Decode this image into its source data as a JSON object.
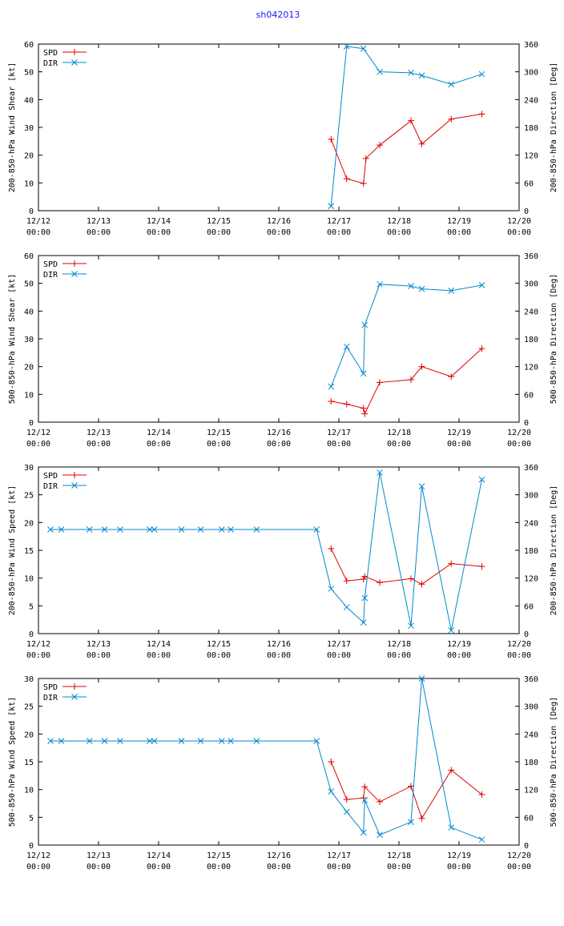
{
  "title": "sh042013",
  "colors": {
    "spd": "#e00000",
    "dir": "#0088cc",
    "axis": "#000000"
  },
  "x_ticks": [
    {
      "d": "12/12",
      "t": "00:00"
    },
    {
      "d": "12/13",
      "t": "00:00"
    },
    {
      "d": "12/14",
      "t": "00:00"
    },
    {
      "d": "12/15",
      "t": "00:00"
    },
    {
      "d": "12/16",
      "t": "00:00"
    },
    {
      "d": "12/17",
      "t": "00:00"
    },
    {
      "d": "12/18",
      "t": "00:00"
    },
    {
      "d": "12/19",
      "t": "00:00"
    },
    {
      "d": "12/20",
      "t": "00:00"
    }
  ],
  "chart_data": [
    {
      "type": "line",
      "ylabel": "200-850-hPa Wind Shear [kt]",
      "y2label": "200-850-hPa Direction [Deg]",
      "xlim": [
        0,
        8
      ],
      "ylim": [
        0,
        60
      ],
      "y2lim": [
        0,
        360
      ],
      "yticks": [
        0,
        10,
        20,
        30,
        40,
        50,
        60
      ],
      "y2ticks": [
        0,
        60,
        120,
        180,
        240,
        300,
        360
      ],
      "legend": "top-left",
      "series": [
        {
          "name": "SPD",
          "axis": "y",
          "x": [
            4.87,
            5.13,
            5.41,
            5.45,
            5.68,
            6.2,
            6.38,
            6.87,
            7.38
          ],
          "values": [
            25.7,
            11.5,
            9.8,
            18.8,
            23.6,
            32.4,
            24.0,
            33.0,
            34.8
          ]
        },
        {
          "name": "DIR",
          "axis": "y2",
          "x": [
            4.87,
            5.13,
            5.41,
            5.68,
            6.2,
            6.38,
            6.87,
            7.38
          ],
          "values": [
            10,
            355,
            350,
            300,
            298,
            292,
            273,
            295
          ]
        }
      ]
    },
    {
      "type": "line",
      "ylabel": "500-850-hPa Wind Shear [kt]",
      "y2label": "500-850-hPa Direction [Deg]",
      "xlim": [
        0,
        8
      ],
      "ylim": [
        0,
        60
      ],
      "y2lim": [
        0,
        360
      ],
      "yticks": [
        0,
        10,
        20,
        30,
        40,
        50,
        60
      ],
      "y2ticks": [
        0,
        60,
        120,
        180,
        240,
        300,
        360
      ],
      "legend": "top-left",
      "series": [
        {
          "name": "SPD",
          "axis": "y",
          "x": [
            4.87,
            5.13,
            5.41,
            5.43,
            5.68,
            6.2,
            6.38,
            6.87,
            7.38
          ],
          "values": [
            7.5,
            6.5,
            5.0,
            3.0,
            14.3,
            15.3,
            20.0,
            16.4,
            26.5
          ]
        },
        {
          "name": "DIR",
          "axis": "y2",
          "x": [
            4.87,
            5.13,
            5.41,
            5.43,
            5.68,
            6.2,
            6.38,
            6.87,
            7.38
          ],
          "values": [
            77,
            163,
            105,
            210,
            298,
            294,
            288,
            284,
            296
          ]
        }
      ]
    },
    {
      "type": "line",
      "ylabel": "200-850-hPa Wind Speed [kt]",
      "y2label": "200-850-hPa Direction [Deg]",
      "xlim": [
        0,
        8
      ],
      "ylim": [
        0,
        30
      ],
      "y2lim": [
        0,
        360
      ],
      "yticks": [
        0,
        5,
        10,
        15,
        20,
        25,
        30
      ],
      "y2ticks": [
        0,
        60,
        120,
        180,
        240,
        300,
        360
      ],
      "legend": "top-left",
      "series": [
        {
          "name": "SPD",
          "axis": "y",
          "x": [
            4.87,
            5.13,
            5.41,
            5.43,
            5.68,
            6.2,
            6.38,
            6.87,
            7.38
          ],
          "values": [
            15.3,
            9.5,
            9.8,
            10.3,
            9.2,
            9.9,
            8.9,
            12.6,
            12.1
          ]
        },
        {
          "name": "DIR",
          "axis": "y2",
          "x": [
            0.2,
            0.38,
            0.85,
            1.1,
            1.36,
            1.85,
            1.93,
            2.38,
            2.7,
            3.05,
            3.2,
            3.63,
            4.63,
            4.87,
            5.13,
            5.41,
            5.43,
            5.68,
            6.2,
            6.38,
            6.87,
            7.38
          ],
          "values": [
            225,
            225,
            225,
            225,
            225,
            225,
            225,
            225,
            225,
            225,
            225,
            225,
            225,
            97,
            57,
            24,
            77,
            348,
            17,
            318,
            7,
            333
          ]
        }
      ]
    },
    {
      "type": "line",
      "ylabel": "500-850-hPa Wind Speed [kt]",
      "y2label": "500-850-hPa Direction [Deg]",
      "xlim": [
        0,
        8
      ],
      "ylim": [
        0,
        30
      ],
      "y2lim": [
        0,
        360
      ],
      "yticks": [
        0,
        5,
        10,
        15,
        20,
        25,
        30
      ],
      "y2ticks": [
        0,
        60,
        120,
        180,
        240,
        300,
        360
      ],
      "legend": "top-left",
      "series": [
        {
          "name": "SPD",
          "axis": "y",
          "x": [
            4.87,
            5.13,
            5.41,
            5.43,
            5.68,
            6.2,
            6.38,
            6.87,
            7.38
          ],
          "values": [
            15.0,
            8.2,
            8.5,
            10.5,
            7.8,
            10.6,
            4.8,
            13.5,
            9.1
          ]
        },
        {
          "name": "DIR",
          "axis": "y2",
          "x": [
            0.2,
            0.38,
            0.85,
            1.1,
            1.36,
            1.85,
            1.93,
            2.38,
            2.7,
            3.05,
            3.2,
            3.63,
            4.63,
            4.87,
            5.13,
            5.41,
            5.43,
            5.68,
            6.2,
            6.38,
            6.87,
            7.38
          ],
          "values": [
            225,
            225,
            225,
            225,
            225,
            225,
            225,
            225,
            225,
            225,
            225,
            225,
            225,
            116,
            72,
            27,
            97,
            22,
            50,
            360,
            38,
            12
          ]
        }
      ]
    }
  ]
}
